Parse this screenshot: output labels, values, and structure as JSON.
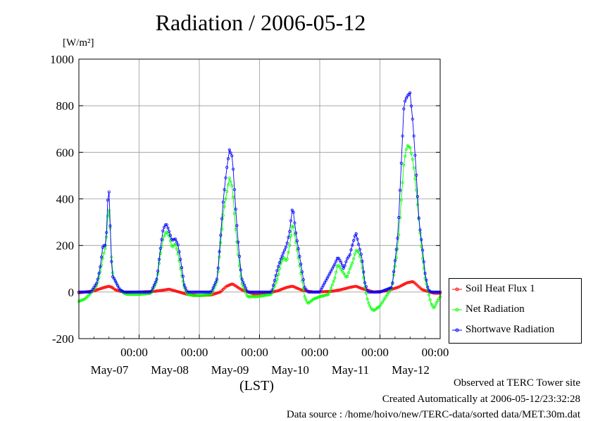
{
  "page": {
    "title": "Radiation / 2006-05-12",
    "footer": [
      "Observed at TERC Tower site",
      "Created Automatically at 2006-05-12/23:32:28",
      "Data source : /home/hoivo/new/TERC-data/sorted  data/MET.30m.dat"
    ]
  },
  "chart_data": {
    "type": "line",
    "title": "Radiation / 2006-05-12",
    "ylabel": "[W/m²]",
    "xlabel": "(LST)",
    "ylim": [
      -200,
      1000
    ],
    "yticks": [
      "1000",
      "800",
      "600",
      "400",
      "200",
      "0",
      "-200"
    ],
    "ytick_values": [
      1000,
      800,
      600,
      400,
      200,
      0,
      -200
    ],
    "xlim": [
      0,
      6
    ],
    "xticks": [
      {
        "pos": 1,
        "time": "00:00",
        "date": "May-07"
      },
      {
        "pos": 2,
        "time": "00:00",
        "date": "May-08"
      },
      {
        "pos": 3,
        "time": "00:00",
        "date": "May-09"
      },
      {
        "pos": 4,
        "time": "00:00",
        "date": "May-10"
      },
      {
        "pos": 5,
        "time": "00:00",
        "date": "May-11"
      },
      {
        "pos": 6,
        "time": "00:00",
        "date": "May-12"
      }
    ],
    "grid": true,
    "legend_position": "outside-right-bottom",
    "x_unit": "days from start of axis",
    "series": [
      {
        "name": "Soil Heat Flux 1",
        "color": "#ff0000",
        "x": [
          0,
          0.25,
          0.4,
          0.5,
          0.55,
          0.6,
          0.7,
          0.8,
          1.0,
          1.25,
          1.4,
          1.5,
          1.6,
          1.8,
          2.0,
          2.2,
          2.35,
          2.45,
          2.55,
          2.7,
          2.9,
          3.1,
          3.3,
          3.45,
          3.55,
          3.7,
          3.9,
          4.2,
          4.35,
          4.5,
          4.6,
          4.7,
          4.9,
          5.1,
          5.3,
          5.45,
          5.55,
          5.7,
          5.9,
          6.0
        ],
        "values": [
          -3,
          5,
          18,
          25,
          20,
          10,
          2,
          -2,
          0,
          3,
          8,
          12,
          5,
          -10,
          -15,
          -12,
          0,
          25,
          35,
          10,
          -8,
          -6,
          5,
          20,
          25,
          8,
          0,
          3,
          10,
          20,
          25,
          15,
          0,
          5,
          20,
          40,
          45,
          10,
          -5,
          -5
        ]
      },
      {
        "name": "Net Radiation",
        "color": "#00ff00",
        "x": [
          0,
          0.1,
          0.2,
          0.3,
          0.35,
          0.4,
          0.45,
          0.48,
          0.5,
          0.52,
          0.55,
          0.58,
          0.62,
          0.68,
          0.75,
          0.8,
          1.0,
          1.2,
          1.3,
          1.35,
          1.4,
          1.45,
          1.5,
          1.55,
          1.6,
          1.65,
          1.7,
          1.75,
          1.8,
          1.9,
          2.0,
          2.2,
          2.3,
          2.35,
          2.4,
          2.45,
          2.5,
          2.55,
          2.6,
          2.65,
          2.7,
          2.8,
          2.95,
          3.2,
          3.3,
          3.35,
          3.4,
          3.45,
          3.5,
          3.55,
          3.6,
          3.65,
          3.7,
          3.75,
          3.8,
          3.85,
          3.9,
          4.0,
          4.15,
          4.25,
          4.3,
          4.35,
          4.4,
          4.45,
          4.5,
          4.55,
          4.6,
          4.65,
          4.7,
          4.75,
          4.8,
          4.85,
          4.9,
          5.0,
          5.2,
          5.3,
          5.35,
          5.4,
          5.45,
          5.5,
          5.55,
          5.6,
          5.65,
          5.7,
          5.75,
          5.8,
          5.85,
          5.9,
          5.95,
          6.0
        ],
        "values": [
          -40,
          -30,
          -5,
          30,
          80,
          150,
          200,
          330,
          350,
          280,
          100,
          60,
          40,
          10,
          -5,
          -10,
          -10,
          -5,
          50,
          160,
          230,
          260,
          240,
          190,
          210,
          160,
          80,
          20,
          -10,
          -15,
          -15,
          -10,
          50,
          200,
          340,
          420,
          490,
          450,
          280,
          150,
          40,
          -20,
          -20,
          -10,
          60,
          120,
          150,
          130,
          200,
          300,
          220,
          140,
          60,
          -20,
          -50,
          -40,
          -30,
          -20,
          -10,
          60,
          120,
          100,
          80,
          60,
          100,
          130,
          180,
          170,
          120,
          20,
          -40,
          -70,
          -80,
          -60,
          20,
          200,
          380,
          560,
          630,
          620,
          560,
          450,
          300,
          160,
          60,
          0,
          -50,
          -70,
          -40,
          -20
        ]
      },
      {
        "name": "Shortwave Radiation",
        "color": "#0000ff",
        "x": [
          0,
          0.2,
          0.3,
          0.35,
          0.4,
          0.45,
          0.48,
          0.5,
          0.52,
          0.55,
          0.58,
          0.62,
          0.68,
          0.75,
          0.8,
          1.0,
          1.2,
          1.3,
          1.35,
          1.4,
          1.45,
          1.5,
          1.55,
          1.6,
          1.65,
          1.7,
          1.75,
          1.8,
          1.9,
          2.0,
          2.2,
          2.3,
          2.35,
          2.4,
          2.45,
          2.5,
          2.55,
          2.6,
          2.65,
          2.7,
          2.8,
          2.95,
          3.2,
          3.3,
          3.35,
          3.4,
          3.45,
          3.5,
          3.55,
          3.6,
          3.65,
          3.7,
          3.75,
          3.8,
          4.0,
          4.25,
          4.3,
          4.35,
          4.4,
          4.45,
          4.5,
          4.55,
          4.6,
          4.65,
          4.7,
          4.75,
          4.8,
          5.0,
          5.2,
          5.3,
          5.35,
          5.4,
          5.45,
          5.5,
          5.55,
          5.6,
          5.65,
          5.7,
          5.75,
          5.8,
          5.85,
          6.0
        ],
        "values": [
          0,
          0,
          40,
          100,
          200,
          200,
          400,
          430,
          290,
          70,
          60,
          40,
          10,
          0,
          0,
          0,
          0,
          60,
          180,
          270,
          295,
          260,
          220,
          230,
          200,
          120,
          30,
          0,
          0,
          0,
          0,
          60,
          230,
          400,
          520,
          610,
          580,
          370,
          200,
          60,
          0,
          0,
          0,
          100,
          140,
          170,
          200,
          260,
          370,
          260,
          180,
          100,
          20,
          0,
          0,
          120,
          150,
          130,
          100,
          140,
          160,
          210,
          255,
          200,
          150,
          40,
          0,
          0,
          20,
          250,
          530,
          810,
          840,
          855,
          720,
          520,
          300,
          200,
          80,
          10,
          0,
          0
        ]
      }
    ]
  }
}
